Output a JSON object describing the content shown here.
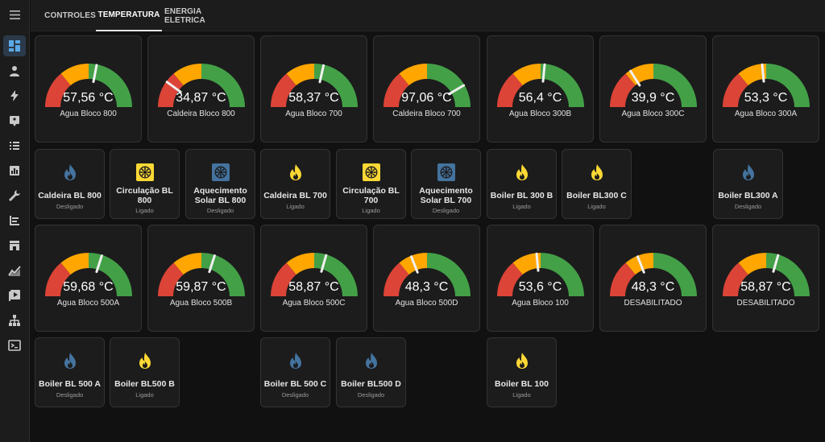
{
  "tabs": [
    "CONTROLES",
    "TEMPERATURA",
    "ENERGIA ELETRICA"
  ],
  "colors": {
    "red": "#db4437",
    "orange": "#ffa600",
    "green": "#43a047",
    "needle": "#f0f0f0",
    "flame_on": "#fdd835",
    "flame_off": "#44739e",
    "pump_on": "#fdd835",
    "pump_off": "#44739e"
  },
  "gauge_rows": [
    [
      {
        "value": "57,56 °C",
        "name": "Agua Bloco 800",
        "level": 0.56
      },
      {
        "value": "34,87 °C",
        "name": "Caldeira Bloco 800",
        "level": 0.2
      },
      {
        "value": "58,37 °C",
        "name": "Agua Bloco 700",
        "level": 0.57
      },
      {
        "value": "97,06 °C",
        "name": "Caldeira Bloco 700",
        "level": 0.83
      },
      {
        "value": "56,4 °C",
        "name": "Agua Bloco 300B",
        "level": 0.53
      },
      {
        "value": "39,9 °C",
        "name": "Agua Bloco 300C",
        "level": 0.32
      },
      {
        "value": "53,3 °C",
        "name": "Agua Bloco 300A",
        "level": 0.47
      }
    ],
    [
      {
        "value": "59,68 °C",
        "name": "Agua Bloco 500A",
        "level": 0.6
      },
      {
        "value": "59,87 °C",
        "name": "Agua Bloco 500B",
        "level": 0.6
      },
      {
        "value": "58,87 °C",
        "name": "Agua Bloco 500C",
        "level": 0.59
      },
      {
        "value": "48,3 °C",
        "name": "Agua Bloco 500D",
        "level": 0.38
      },
      {
        "value": "53,6 °C",
        "name": "Agua Bloco 100",
        "level": 0.47
      },
      {
        "value": "48,3 °C",
        "name": "DESABILITADO",
        "level": 0.38
      },
      {
        "value": "58,87 °C",
        "name": "DESABILITADO",
        "level": 0.59
      }
    ]
  ],
  "tile_rows": [
    [
      {
        "icon": "flame-icon",
        "on": false,
        "name": [
          "Caldeira BL 800"
        ],
        "state": "Desligado"
      },
      {
        "icon": "pump-icon",
        "on": true,
        "name": [
          "Circulação BL",
          "800"
        ],
        "state": "Ligado"
      },
      {
        "icon": "pump-icon",
        "on": false,
        "name": [
          "Aquecimento",
          "Solar BL 800"
        ],
        "state": "Desligado"
      },
      {
        "icon": "flame-icon",
        "on": true,
        "name": [
          "Caldeira BL 700"
        ],
        "state": "Ligado"
      },
      {
        "icon": "pump-icon",
        "on": true,
        "name": [
          "Circulação BL",
          "700"
        ],
        "state": "Ligado"
      },
      {
        "icon": "pump-icon",
        "on": false,
        "name": [
          "Aquecimento",
          "Solar BL 700"
        ],
        "state": "Desligado"
      },
      {
        "icon": "flame-icon",
        "on": true,
        "name": [
          "Boiler BL 300 B"
        ],
        "state": "Ligado"
      },
      {
        "icon": "flame-icon",
        "on": true,
        "name": [
          "Boiler BL300 C"
        ],
        "state": "Ligado"
      },
      null,
      {
        "icon": "flame-icon",
        "on": false,
        "name": [
          "Boiler BL300 A"
        ],
        "state": "Desligado"
      }
    ],
    [
      {
        "icon": "flame-icon",
        "on": false,
        "name": [
          "Boiler BL 500 A"
        ],
        "state": "Desligado"
      },
      {
        "icon": "flame-icon",
        "on": true,
        "name": [
          "Boiler BL500 B"
        ],
        "state": "Ligado"
      },
      null,
      {
        "icon": "flame-icon",
        "on": false,
        "name": [
          "Boiler BL 500 C"
        ],
        "state": "Desligado"
      },
      {
        "icon": "flame-icon",
        "on": false,
        "name": [
          "Boiler BL500 D"
        ],
        "state": "Desligado"
      },
      null,
      {
        "icon": "flame-icon",
        "on": true,
        "name": [
          "Boiler BL 100"
        ],
        "state": "Ligado"
      }
    ]
  ],
  "sidebar": [
    "dashboard-icon",
    "person-icon",
    "energy-icon",
    "logbook-icon",
    "list-icon",
    "chart-icon",
    "wrench-icon",
    "history-icon",
    "store-icon",
    "statistics-icon",
    "media-icon",
    "network-icon",
    "terminal-icon"
  ]
}
